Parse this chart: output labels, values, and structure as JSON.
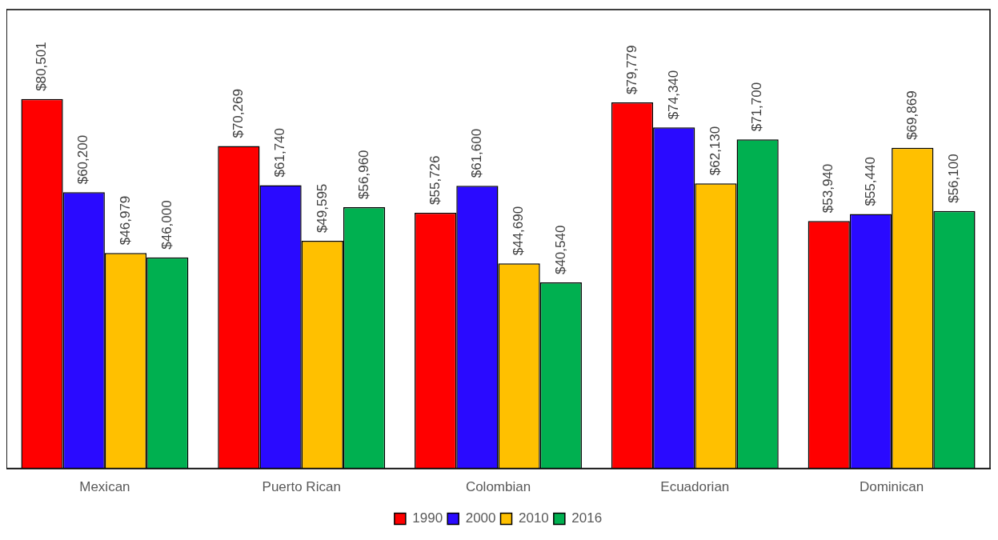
{
  "chart_data": {
    "type": "bar",
    "categories": [
      "Mexican",
      "Puerto Rican",
      "Colombian",
      "Ecuadorian",
      "Dominican"
    ],
    "series": [
      {
        "name": "1990",
        "color": "#ff0000",
        "values": [
          80501,
          70269,
          55726,
          79779,
          53940
        ],
        "value_labels": [
          "$80,501",
          "$70,269",
          "$55,726",
          "$79,779",
          "$53,940"
        ]
      },
      {
        "name": "2000",
        "color": "#2a0aff",
        "values": [
          60200,
          61740,
          61600,
          74340,
          55440
        ],
        "value_labels": [
          "$60,200",
          "$61,740",
          "$61,600",
          "$74,340",
          "$55,440"
        ]
      },
      {
        "name": "2010",
        "color": "#ffc000",
        "values": [
          46979,
          49595,
          44690,
          62130,
          69869
        ],
        "value_labels": [
          "$46,979",
          "$49,595",
          "$44,690",
          "$62,130",
          "$69,869"
        ]
      },
      {
        "name": "2016",
        "color": "#00b050",
        "values": [
          46000,
          56960,
          40540,
          71700,
          56100
        ],
        "value_labels": [
          "$46,000",
          "$56,960",
          "$40,540",
          "$71,700",
          "$56,100"
        ]
      }
    ],
    "ylim": [
      0,
      100000
    ],
    "tick_labels": "x",
    "grid": false,
    "legend": "bottom"
  }
}
